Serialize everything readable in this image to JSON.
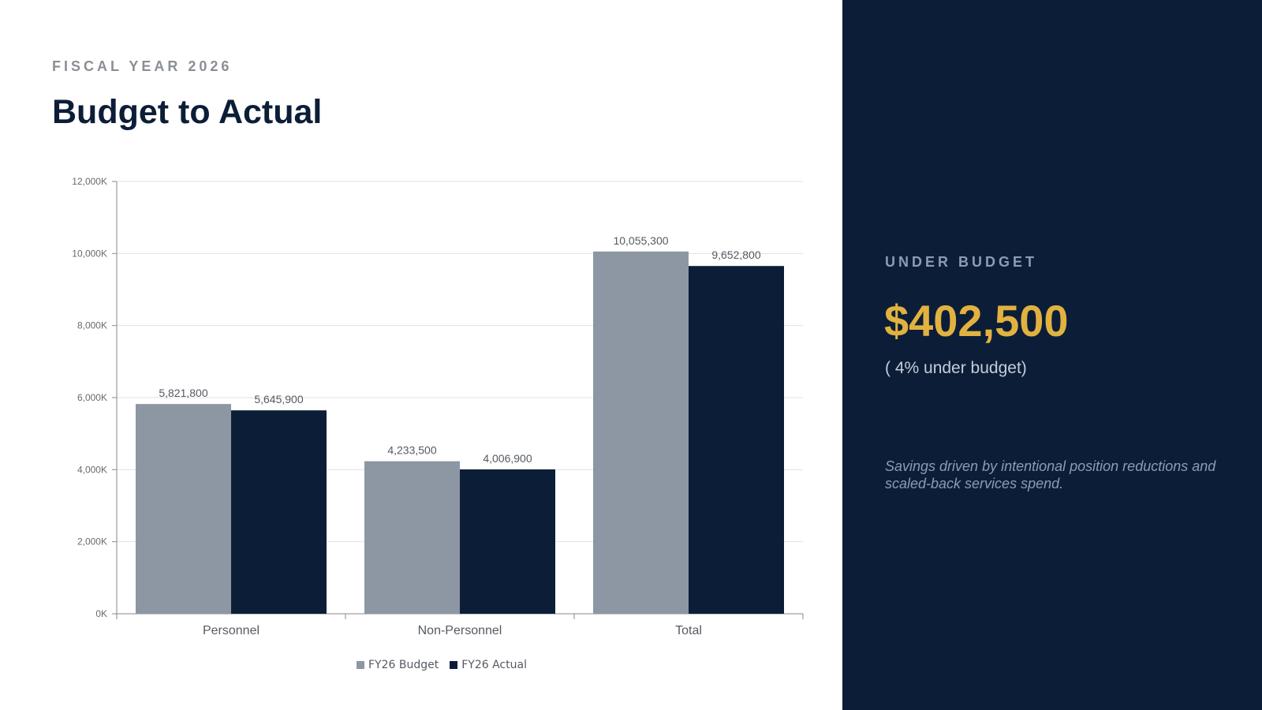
{
  "header": {
    "eyebrow": "FISCAL YEAR 2026",
    "title": "Budget to Actual"
  },
  "kpi": {
    "label": "UNDER BUDGET",
    "value": "$402,500",
    "sub": "( 4% under budget)",
    "note": "Savings driven by intentional position reductions and scaled-back services spend."
  },
  "colors": {
    "budget": "#8d97a3",
    "actual": "#0c1e37",
    "panel": "#0c1e37",
    "accent": "#e2b240"
  },
  "chart_data": {
    "type": "bar",
    "categories": [
      "Personnel",
      "Non-Personnel",
      "Total"
    ],
    "series": [
      {
        "name": "FY26 Budget",
        "values": [
          5821800,
          4233500,
          10055300
        ],
        "labels": [
          "5,821,800",
          "4,233,500",
          "10,055,300"
        ]
      },
      {
        "name": "FY26 Actual",
        "values": [
          5645900,
          4006900,
          9652800
        ],
        "labels": [
          "5,645,900",
          "4,006,900",
          "9,652,800"
        ]
      }
    ],
    "ylim": [
      0,
      12000000
    ],
    "yticks": [
      0,
      2000000,
      4000000,
      6000000,
      8000000,
      10000000,
      12000000
    ],
    "ytick_labels": [
      "0K",
      "2,000K",
      "4,000K",
      "6,000K",
      "8,000K",
      "10,000K",
      "12,000K"
    ],
    "grid": true,
    "legend_position": "bottom"
  }
}
